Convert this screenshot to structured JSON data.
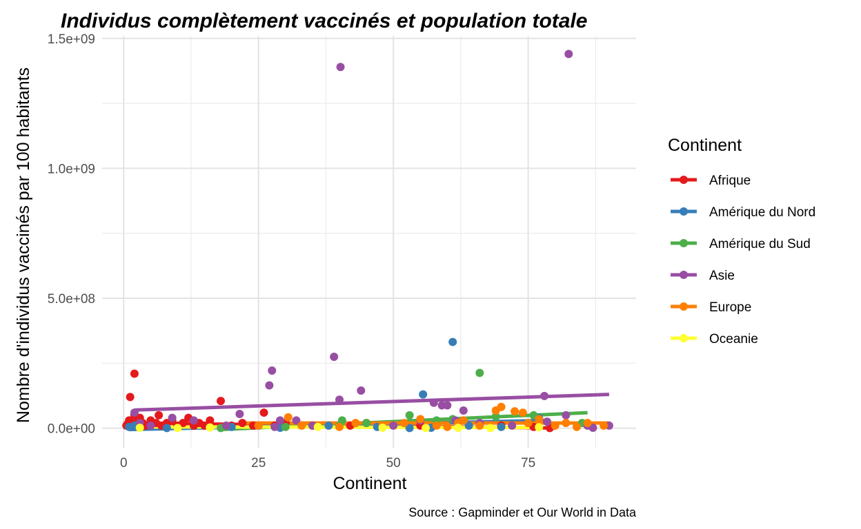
{
  "chart_data": {
    "type": "scatter",
    "title": "Individus complètement vaccinés et population totale",
    "xlabel": "Continent",
    "ylabel": "Nombre d'individus vaccinés par 100 habitants",
    "caption": "Source : Gapminder et Our World in Data",
    "xlim": [
      -4,
      95
    ],
    "ylim": [
      -75000000.0,
      1510000000.0
    ],
    "x_ticks": [
      0,
      25,
      50,
      75
    ],
    "x_tick_labels": [
      "0",
      "25",
      "50",
      "75"
    ],
    "y_ticks": [
      0,
      500000000,
      1000000000,
      1500000000
    ],
    "y_tick_labels": [
      "0.0e+00",
      "5.0e+08",
      "1.0e+09",
      "1.5e+09"
    ],
    "grid": true,
    "legend": {
      "title": "Continent",
      "position": "right"
    },
    "series": [
      {
        "name": "Afrique",
        "color": "#E41A1C",
        "trend": [
          [
            0,
            20000000
          ],
          [
            80,
            1000000
          ]
        ],
        "points": [
          [
            0.5,
            10000000.0
          ],
          [
            1,
            30000000.0
          ],
          [
            1.2,
            120000000.0
          ],
          [
            1.5,
            10000000.0
          ],
          [
            2,
            210000000.0
          ],
          [
            2,
            50000000.0
          ],
          [
            2.5,
            30000000.0
          ],
          [
            3,
            40000000.0
          ],
          [
            3.5,
            20000000.0
          ],
          [
            4,
            10000000.0
          ],
          [
            5,
            30000000.0
          ],
          [
            6,
            20000000.0
          ],
          [
            6.5,
            50000000.0
          ],
          [
            7,
            10000000.0
          ],
          [
            8,
            20000000.0
          ],
          [
            9,
            30000000.0
          ],
          [
            10,
            10000000.0
          ],
          [
            11,
            20000000.0
          ],
          [
            12,
            40000000.0
          ],
          [
            13,
            10000000.0
          ],
          [
            14,
            20000000.0
          ],
          [
            15,
            10000000.0
          ],
          [
            16,
            30000000.0
          ],
          [
            18,
            105000000.0
          ],
          [
            20,
            10000000.0
          ],
          [
            22,
            20000000.0
          ],
          [
            24,
            10000000.0
          ],
          [
            26,
            60000000.0
          ],
          [
            28,
            10000000.0
          ],
          [
            30,
            20000000.0
          ],
          [
            35,
            10000000.0
          ],
          [
            42,
            10000000.0
          ],
          [
            45,
            20000000.0
          ],
          [
            55,
            10000000.0
          ],
          [
            70,
            10000000.0
          ],
          [
            76,
            5000000.0
          ],
          [
            79,
            1000000.0
          ]
        ]
      },
      {
        "name": "Amérique du Nord",
        "color": "#377EB8",
        "trend": [
          [
            1,
            -5000000
          ],
          [
            78,
            30000000
          ]
        ],
        "points": [
          [
            1,
            5000000.0
          ],
          [
            2,
            10000000.0
          ],
          [
            8,
            1000000.0
          ],
          [
            20,
            5000000.0
          ],
          [
            29,
            2000000.0
          ],
          [
            38,
            10000000.0
          ],
          [
            47,
            5000000.0
          ],
          [
            53,
            1000000.0
          ],
          [
            55.5,
            130000000.0
          ],
          [
            57,
            2000000.0
          ],
          [
            61,
            332000000.0
          ],
          [
            61,
            30000000.0
          ],
          [
            64,
            10000000.0
          ],
          [
            70,
            5000000.0
          ],
          [
            77,
            40000000.0
          ]
        ]
      },
      {
        "name": "Amérique du Sud",
        "color": "#4DAF4A",
        "trend": [
          [
            18,
            -5000000
          ],
          [
            86,
            60000000
          ]
        ],
        "points": [
          [
            18,
            1000000.0
          ],
          [
            30,
            5000000.0
          ],
          [
            40,
            10000000.0
          ],
          [
            40.5,
            30000000.0
          ],
          [
            45,
            20000000.0
          ],
          [
            53,
            50000000.0
          ],
          [
            58,
            30000000.0
          ],
          [
            61,
            35000000.0
          ],
          [
            66,
            213000000.0
          ],
          [
            69,
            45000000.0
          ],
          [
            76,
            50000000.0
          ],
          [
            85,
            20000000.0
          ]
        ]
      },
      {
        "name": "Asie",
        "color": "#984EA3",
        "trend": [
          [
            2,
            70000000
          ],
          [
            90,
            130000000
          ]
        ],
        "points": [
          [
            2,
            60000000.0
          ],
          [
            3,
            20000000.0
          ],
          [
            5,
            10000000.0
          ],
          [
            9,
            40000000.0
          ],
          [
            13,
            30000000.0
          ],
          [
            19,
            10000000.0
          ],
          [
            21.5,
            55000000.0
          ],
          [
            25,
            10000000.0
          ],
          [
            27,
            165000000.0
          ],
          [
            27.5,
            222000000.0
          ],
          [
            28,
            5000000.0
          ],
          [
            29,
            30000000.0
          ],
          [
            32,
            30000000.0
          ],
          [
            35,
            10000000.0
          ],
          [
            39,
            275000000.0
          ],
          [
            40,
            110000000.0
          ],
          [
            40.2,
            1390000000.0
          ],
          [
            44,
            145000000.0
          ],
          [
            50,
            10000000.0
          ],
          [
            55,
            30000000.0
          ],
          [
            57.5,
            98000000.0
          ],
          [
            59,
            88000000.0
          ],
          [
            60,
            88000000.0
          ],
          [
            61.5,
            30000000.0
          ],
          [
            63,
            68000000.0
          ],
          [
            66,
            20000000.0
          ],
          [
            72,
            10000000.0
          ],
          [
            78,
            124000000.0
          ],
          [
            78.5,
            25000000.0
          ],
          [
            82,
            50000000.0
          ],
          [
            82.5,
            1440000000.0
          ],
          [
            86,
            10000000.0
          ],
          [
            87,
            2000000.0
          ],
          [
            90,
            10000000.0
          ]
        ]
      },
      {
        "name": "Europe",
        "color": "#FF7F00",
        "trend": [
          [
            22,
            20000000
          ],
          [
            90,
            20000000
          ]
        ],
        "points": [
          [
            25,
            10000000.0
          ],
          [
            30.5,
            42000000.0
          ],
          [
            33,
            10000000.0
          ],
          [
            40,
            5000000.0
          ],
          [
            43,
            20000000.0
          ],
          [
            48,
            10000000.0
          ],
          [
            52,
            20000000.0
          ],
          [
            55,
            35000000.0
          ],
          [
            58,
            10000000.0
          ],
          [
            60,
            5000000.0
          ],
          [
            62,
            20000000.0
          ],
          [
            63,
            30000000.0
          ],
          [
            66,
            10000000.0
          ],
          [
            69,
            68000000.0
          ],
          [
            70,
            82000000.0
          ],
          [
            72.5,
            65000000.0
          ],
          [
            74,
            60000000.0
          ],
          [
            75,
            20000000.0
          ],
          [
            77,
            35000000.0
          ],
          [
            80,
            10000000.0
          ],
          [
            82,
            20000000.0
          ],
          [
            84,
            5000000.0
          ],
          [
            86,
            20000000.0
          ],
          [
            89,
            10000000.0
          ]
        ]
      },
      {
        "name": "Oceanie",
        "color": "#FFFF33",
        "trend": [
          [
            3,
            5000000
          ],
          [
            77,
            3000000
          ]
        ],
        "points": [
          [
            3,
            2000000.0
          ],
          [
            10,
            1000000.0
          ],
          [
            16,
            3000000.0
          ],
          [
            36,
            5000000.0
          ],
          [
            48,
            2000000.0
          ],
          [
            56,
            1000000.0
          ],
          [
            62,
            2000000.0
          ],
          [
            68,
            1000000.0
          ],
          [
            77,
            4000000.0
          ]
        ]
      }
    ]
  }
}
